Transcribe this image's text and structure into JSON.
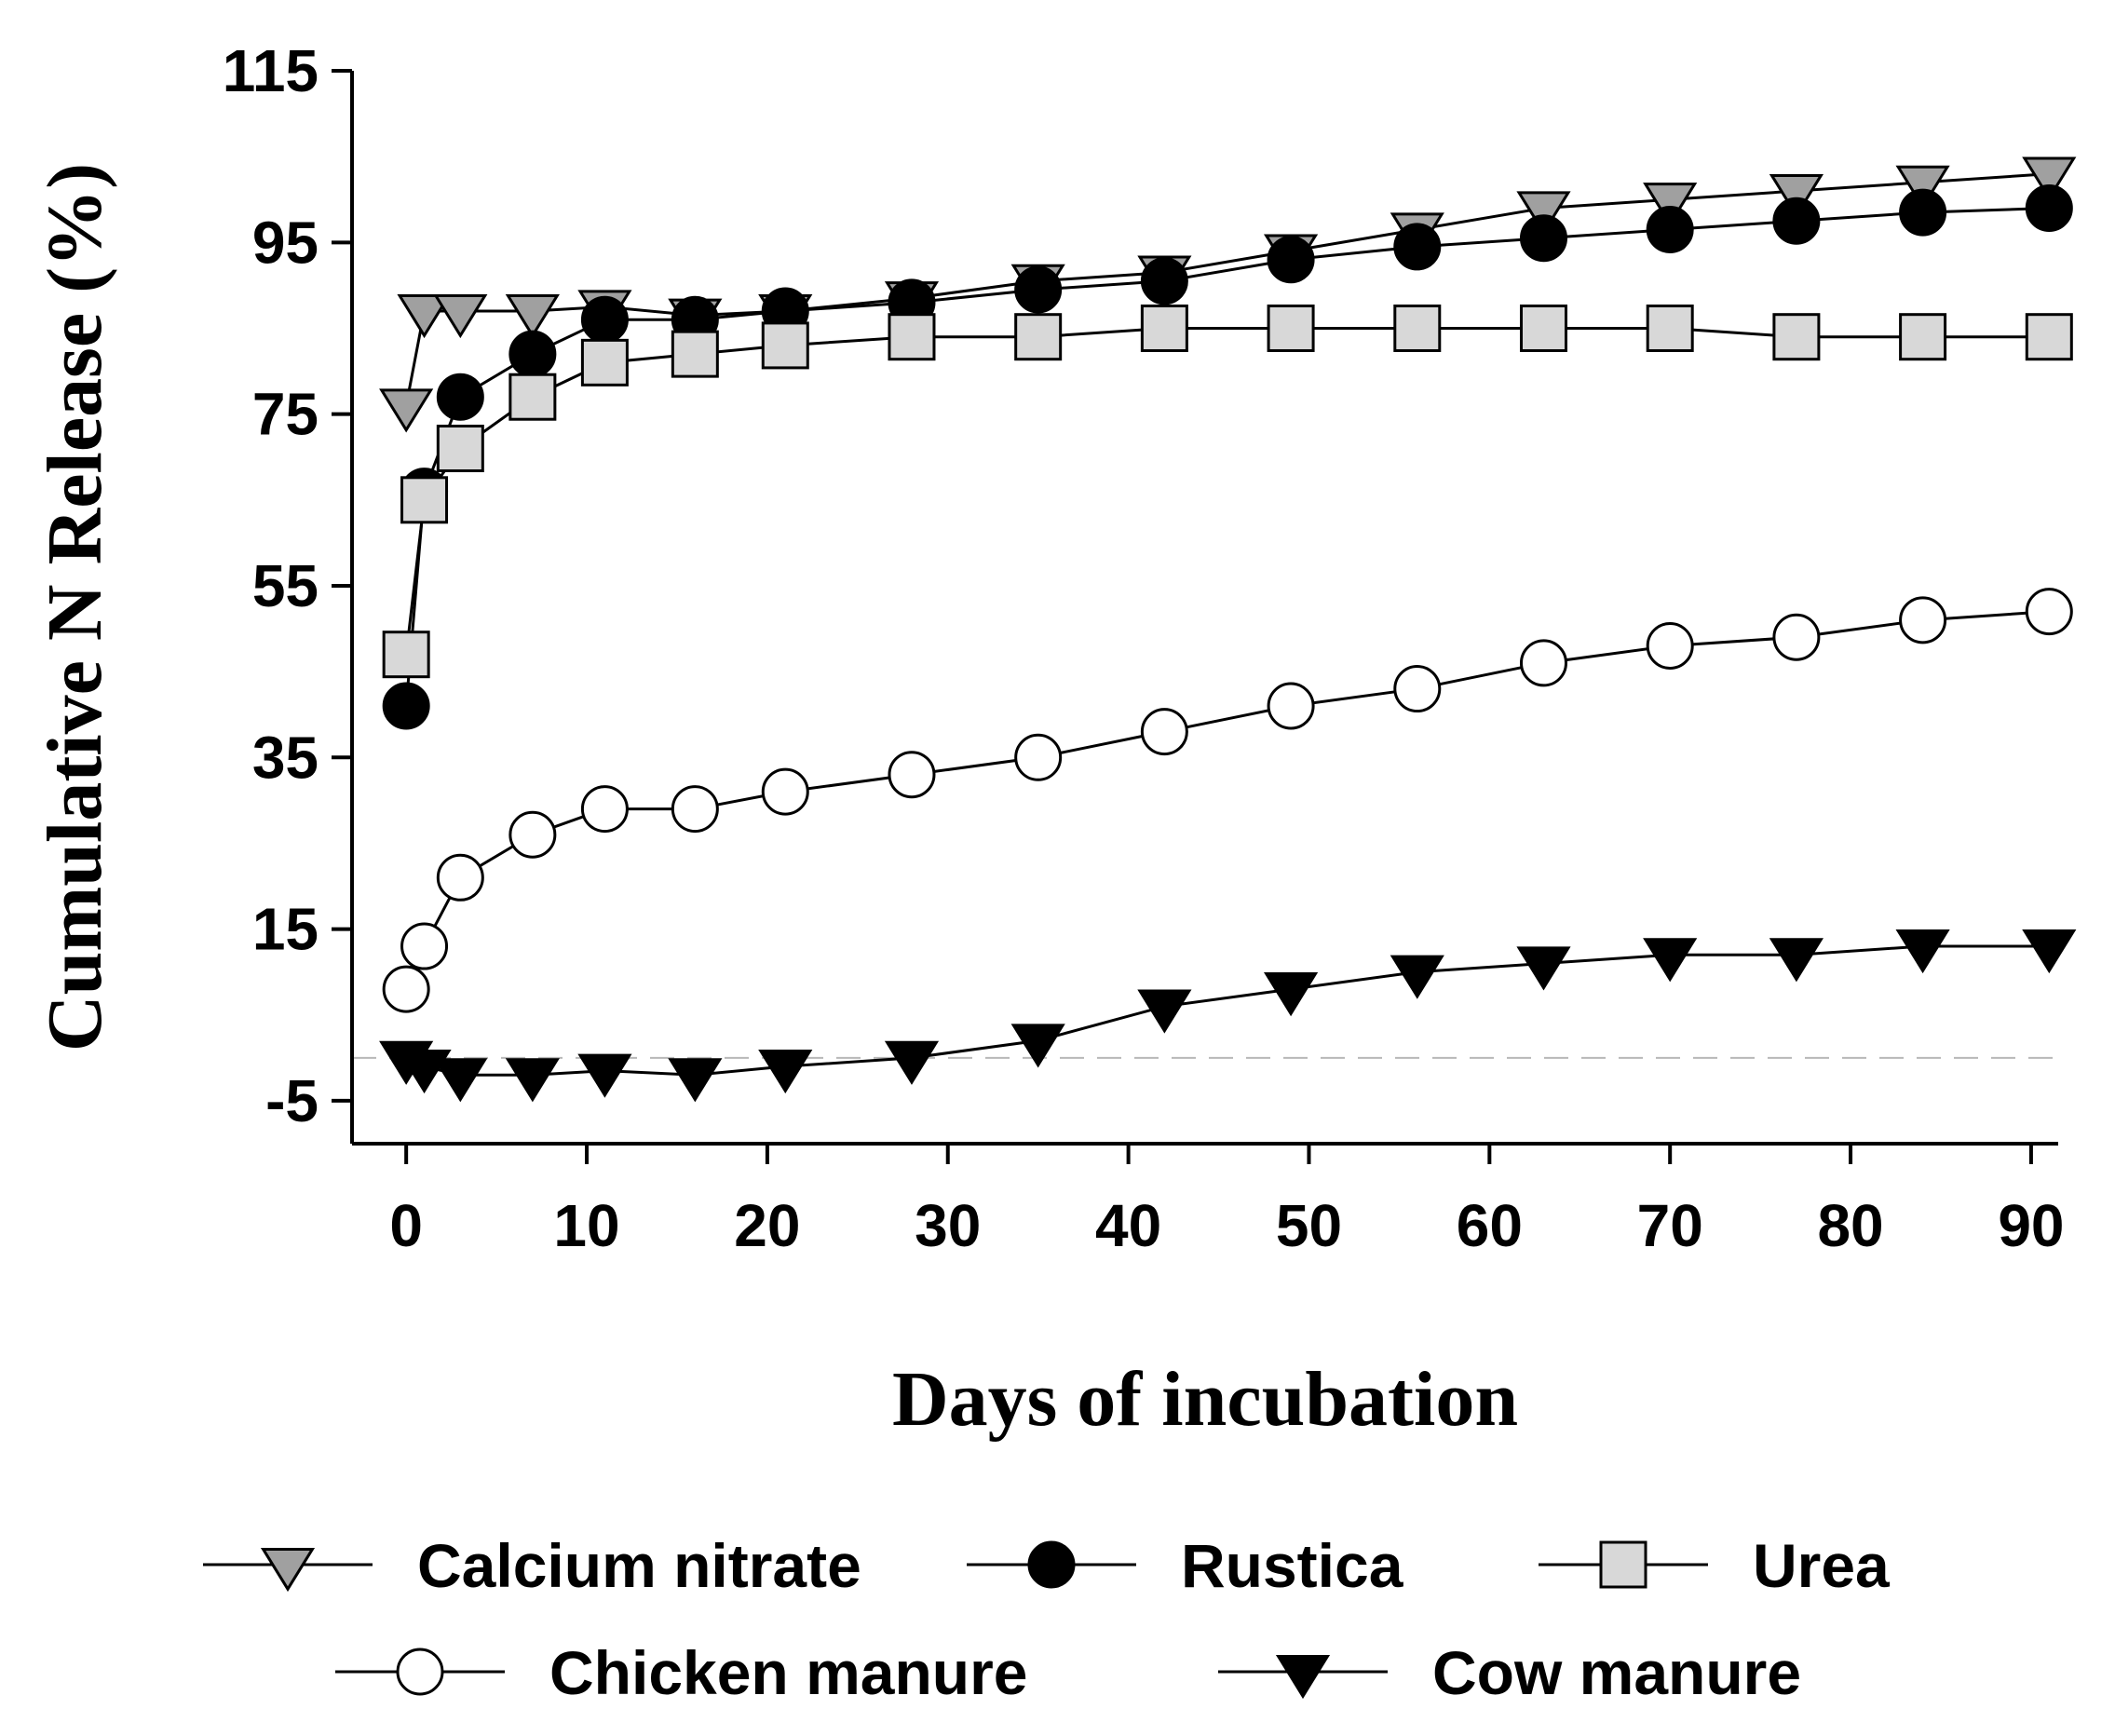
{
  "chart_data": {
    "type": "line",
    "xlabel": "Days of incubation",
    "ylabel": "Cumulative N Release (%)",
    "xlim": [
      -3,
      91.5
    ],
    "ylim": [
      -10,
      115
    ],
    "x_ticks": [
      0,
      10,
      20,
      30,
      40,
      50,
      60,
      70,
      80,
      90
    ],
    "y_ticks": [
      -5,
      15,
      35,
      55,
      75,
      95,
      115
    ],
    "reference_line": {
      "y": 0,
      "style": "dashed"
    },
    "legend_position": "bottom",
    "series": [
      {
        "name": "Calcium nitrate",
        "marker": "triangle-down",
        "fill": "#a0a0a0",
        "x": [
          0,
          1,
          3,
          7,
          11,
          16,
          21,
          28,
          35,
          42,
          49,
          56,
          63,
          70,
          77,
          84,
          91
        ],
        "y": [
          76,
          87,
          87,
          87,
          87.5,
          86.5,
          87,
          88.5,
          90.5,
          91.5,
          94,
          96.5,
          99,
          100,
          101,
          102,
          103
        ]
      },
      {
        "name": "Rustica",
        "marker": "circle",
        "fill": "#000000",
        "x": [
          0,
          1,
          3,
          7,
          11,
          16,
          21,
          28,
          35,
          42,
          49,
          56,
          63,
          70,
          77,
          84,
          91
        ],
        "y": [
          41,
          66,
          77,
          82,
          86,
          86,
          87,
          88,
          89.5,
          90.5,
          93,
          94.5,
          95.5,
          96.5,
          97.5,
          98.5,
          99
        ]
      },
      {
        "name": "Urea",
        "marker": "square",
        "fill": "#d8d8d8",
        "x": [
          0,
          1,
          3,
          7,
          11,
          16,
          21,
          28,
          35,
          42,
          49,
          56,
          63,
          70,
          77,
          84,
          91
        ],
        "y": [
          47,
          65,
          71,
          77,
          81,
          82,
          83,
          84,
          84,
          85,
          85,
          85,
          85,
          85,
          84,
          84,
          84
        ]
      },
      {
        "name": "Chicken manure",
        "marker": "circle",
        "fill": "#ffffff",
        "x": [
          0,
          1,
          3,
          7,
          11,
          16,
          21,
          28,
          35,
          42,
          49,
          56,
          63,
          70,
          77,
          84,
          91
        ],
        "y": [
          8,
          13,
          21,
          26,
          29,
          29,
          31,
          33,
          35,
          38,
          41,
          43,
          46,
          48,
          49,
          51,
          52
        ]
      },
      {
        "name": "Cow manure",
        "marker": "triangle-down",
        "fill": "#000000",
        "x": [
          0,
          1,
          3,
          7,
          11,
          16,
          21,
          28,
          35,
          42,
          49,
          56,
          63,
          70,
          77,
          84,
          91
        ],
        "y": [
          0,
          -1,
          -2,
          -2,
          -1.5,
          -2,
          -1,
          0,
          2,
          6,
          8,
          10,
          11,
          12,
          12,
          13,
          13
        ]
      }
    ]
  }
}
